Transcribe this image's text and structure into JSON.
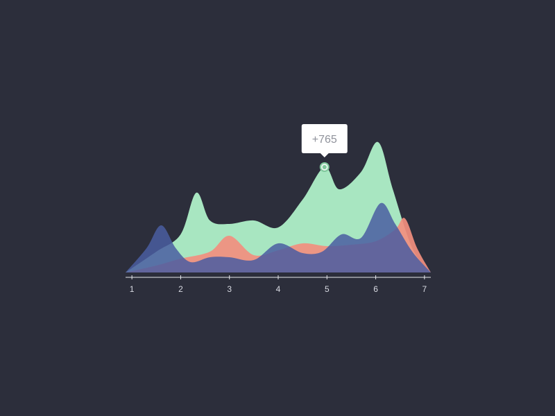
{
  "chart_data": {
    "type": "area",
    "title": "",
    "xlabel": "",
    "ylabel": "",
    "x_ticks": [
      "1",
      "2",
      "3",
      "4",
      "5",
      "6",
      "7"
    ],
    "xlim": [
      0.87,
      7.13
    ],
    "ylim": [
      0,
      220
    ],
    "grid": false,
    "legend": "none",
    "series": [
      {
        "color": "#a8e6c1",
        "points": [
          [
            0.87,
            0
          ],
          [
            1.5,
            30
          ],
          [
            2.0,
            55
          ],
          [
            2.32,
            115
          ],
          [
            2.6,
            75
          ],
          [
            3.0,
            70
          ],
          [
            3.5,
            75
          ],
          [
            4.0,
            65
          ],
          [
            4.5,
            105
          ],
          [
            4.95,
            152
          ],
          [
            5.25,
            120
          ],
          [
            5.7,
            145
          ],
          [
            6.05,
            188
          ],
          [
            6.35,
            120
          ],
          [
            6.75,
            35
          ],
          [
            7.13,
            0
          ]
        ]
      },
      {
        "color": "#f28f7f",
        "points": [
          [
            0.87,
            0
          ],
          [
            1.5,
            10
          ],
          [
            2.0,
            20
          ],
          [
            2.6,
            30
          ],
          [
            3.0,
            53
          ],
          [
            3.5,
            25
          ],
          [
            4.0,
            32
          ],
          [
            4.5,
            42
          ],
          [
            5.0,
            38
          ],
          [
            5.5,
            40
          ],
          [
            6.0,
            45
          ],
          [
            6.4,
            62
          ],
          [
            6.6,
            78
          ],
          [
            6.85,
            35
          ],
          [
            7.13,
            0
          ]
        ]
      },
      {
        "color": "#4a5da1",
        "points": [
          [
            0.87,
            0
          ],
          [
            1.3,
            35
          ],
          [
            1.6,
            68
          ],
          [
            1.9,
            35
          ],
          [
            2.2,
            15
          ],
          [
            2.6,
            22
          ],
          [
            3.0,
            22
          ],
          [
            3.5,
            18
          ],
          [
            4.0,
            42
          ],
          [
            4.5,
            28
          ],
          [
            4.9,
            30
          ],
          [
            5.3,
            55
          ],
          [
            5.7,
            50
          ],
          [
            6.1,
            100
          ],
          [
            6.4,
            70
          ],
          [
            6.75,
            30
          ],
          [
            7.13,
            0
          ]
        ]
      }
    ],
    "highlight": {
      "x": 4.95,
      "y": 152,
      "label": "+765"
    }
  }
}
